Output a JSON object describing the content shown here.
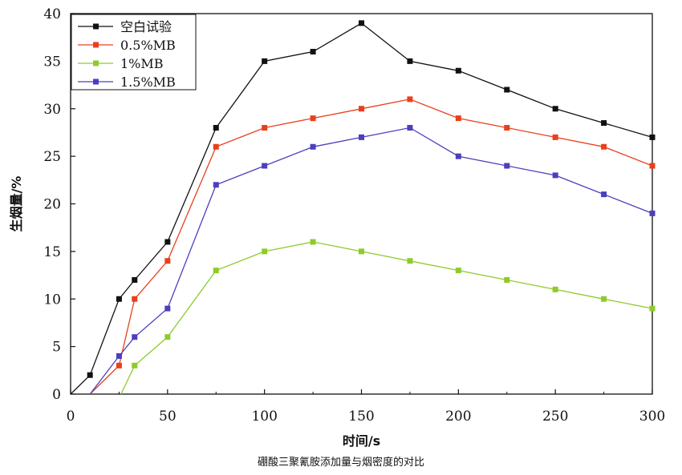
{
  "caption": "硼酸三聚氰胺添加量与烟密度的对比",
  "chart_data": {
    "type": "line",
    "xlabel": "时间/s",
    "ylabel": "生烟量/%",
    "xlim": [
      0,
      300
    ],
    "ylim": [
      0,
      40
    ],
    "xticks": [
      0,
      50,
      100,
      150,
      200,
      250,
      300
    ],
    "yticks": [
      0,
      5,
      10,
      15,
      20,
      25,
      30,
      35,
      40
    ],
    "grid": false,
    "legend_position": "top-left",
    "series": [
      {
        "name": "空白试验",
        "color": "#111111",
        "marker": "square",
        "x": [
          0,
          10,
          25,
          33,
          50,
          75,
          100,
          125,
          150,
          175,
          200,
          225,
          250,
          275,
          300
        ],
        "y": [
          0,
          2,
          10,
          12,
          16,
          28,
          35,
          36,
          39,
          35,
          34,
          32,
          30,
          28.5,
          27
        ],
        "markers_at": [
          10,
          25,
          33,
          50,
          75,
          100,
          125,
          150,
          175,
          200,
          225,
          250,
          275,
          300
        ]
      },
      {
        "name": "0.5%MB",
        "color": "#e8401c",
        "marker": "square",
        "x": [
          10,
          25,
          33,
          50,
          75,
          100,
          125,
          150,
          175,
          200,
          225,
          250,
          275,
          300
        ],
        "y": [
          0,
          3,
          10,
          14,
          26,
          28,
          29,
          30,
          31,
          29,
          28,
          27,
          26,
          24
        ],
        "markers_at": [
          25,
          33,
          50,
          75,
          100,
          125,
          150,
          175,
          200,
          225,
          250,
          275,
          300
        ]
      },
      {
        "name": "1%MB",
        "color": "#8ecb2a",
        "marker": "square",
        "x": [
          26,
          33,
          50,
          75,
          100,
          125,
          150,
          175,
          200,
          225,
          250,
          275,
          300
        ],
        "y": [
          0,
          3,
          6,
          13,
          15,
          16,
          15,
          14,
          13,
          12,
          11,
          10,
          9
        ],
        "markers_at": [
          33,
          50,
          75,
          100,
          125,
          150,
          175,
          200,
          225,
          250,
          275,
          300
        ]
      },
      {
        "name": "1.5%MB",
        "color": "#4b3fbf",
        "marker": "square",
        "x": [
          10,
          25,
          33,
          50,
          75,
          100,
          125,
          150,
          175,
          200,
          225,
          250,
          275,
          300
        ],
        "y": [
          0,
          4,
          6,
          9,
          22,
          24,
          26,
          27,
          28,
          25,
          24,
          23,
          21,
          19
        ],
        "markers_at": [
          25,
          33,
          50,
          75,
          100,
          125,
          150,
          175,
          200,
          225,
          250,
          275,
          300
        ]
      }
    ]
  }
}
